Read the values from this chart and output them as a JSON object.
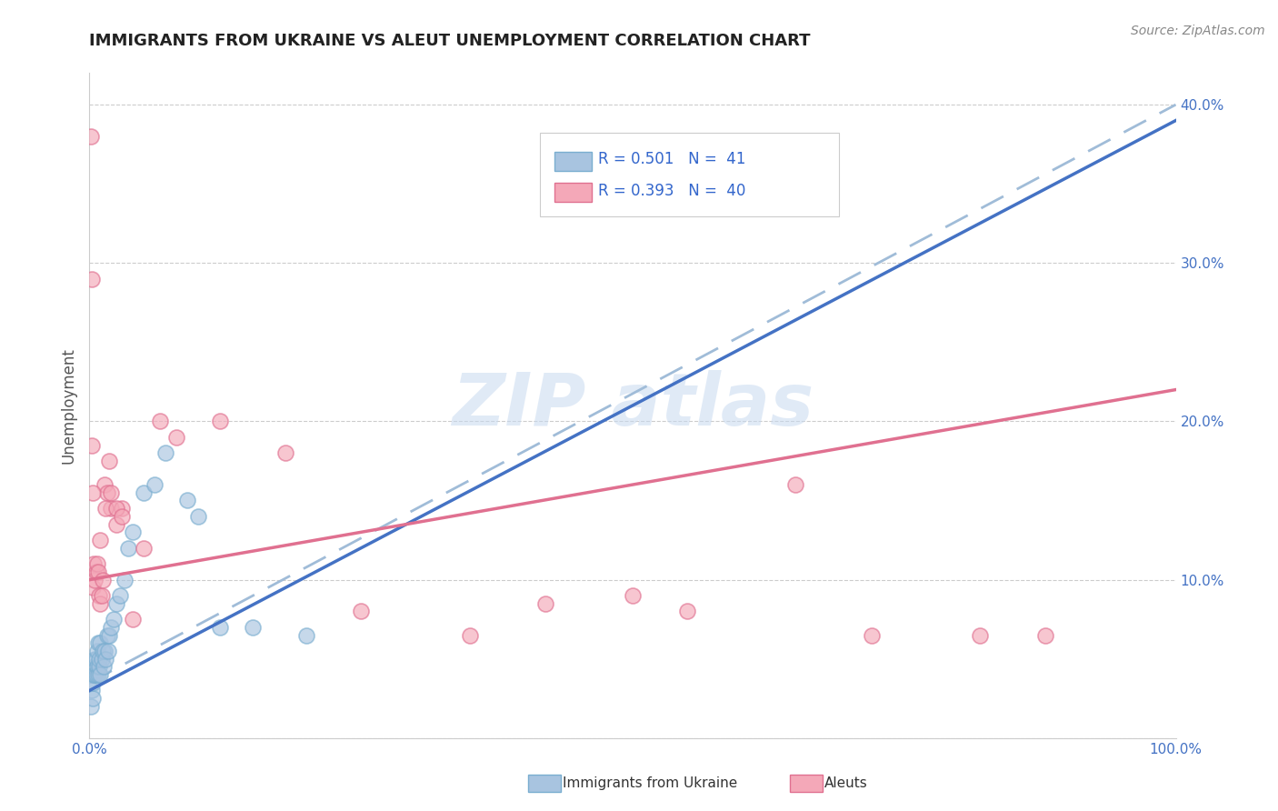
{
  "title": "IMMIGRANTS FROM UKRAINE VS ALEUT UNEMPLOYMENT CORRELATION CHART",
  "source_text": "Source: ZipAtlas.com",
  "ylabel": "Unemployment",
  "xlim": [
    0,
    1.0
  ],
  "ylim": [
    0,
    0.42
  ],
  "x_tick_positions": [
    0.0,
    1.0
  ],
  "x_tick_labels": [
    "0.0%",
    "100.0%"
  ],
  "y_tick_positions": [
    0.0,
    0.1,
    0.2,
    0.3,
    0.4
  ],
  "y_tick_labels": [
    "",
    "10.0%",
    "20.0%",
    "30.0%",
    "40.0%"
  ],
  "ukraine_color": "#a8c4e0",
  "ukraine_edge_color": "#7aaed0",
  "aleut_color": "#f4a8b8",
  "aleut_edge_color": "#e07090",
  "ukraine_line_color": "#4472c4",
  "aleut_line_color": "#e07090",
  "dashed_line_color": "#a0bcd8",
  "tick_color": "#4472c4",
  "grid_color": "#cccccc",
  "title_color": "#222222",
  "source_color": "#888888",
  "legend_labels": [
    "Immigrants from Ukraine",
    "Aleuts"
  ],
  "ukraine_x": [
    0.001,
    0.002,
    0.003,
    0.003,
    0.004,
    0.004,
    0.005,
    0.005,
    0.006,
    0.006,
    0.007,
    0.007,
    0.008,
    0.008,
    0.009,
    0.009,
    0.01,
    0.01,
    0.011,
    0.012,
    0.013,
    0.014,
    0.015,
    0.016,
    0.017,
    0.018,
    0.02,
    0.022,
    0.025,
    0.028,
    0.032,
    0.036,
    0.04,
    0.05,
    0.06,
    0.07,
    0.09,
    0.1,
    0.12,
    0.15,
    0.2
  ],
  "ukraine_y": [
    0.02,
    0.03,
    0.025,
    0.035,
    0.04,
    0.045,
    0.04,
    0.05,
    0.04,
    0.05,
    0.045,
    0.055,
    0.04,
    0.06,
    0.045,
    0.05,
    0.04,
    0.06,
    0.05,
    0.055,
    0.045,
    0.055,
    0.05,
    0.065,
    0.055,
    0.065,
    0.07,
    0.075,
    0.085,
    0.09,
    0.1,
    0.12,
    0.13,
    0.155,
    0.16,
    0.18,
    0.15,
    0.14,
    0.07,
    0.07,
    0.065
  ],
  "aleut_x": [
    0.001,
    0.002,
    0.003,
    0.004,
    0.005,
    0.006,
    0.007,
    0.008,
    0.009,
    0.01,
    0.011,
    0.012,
    0.014,
    0.016,
    0.018,
    0.02,
    0.025,
    0.03,
    0.04,
    0.05,
    0.065,
    0.08,
    0.12,
    0.18,
    0.25,
    0.35,
    0.42,
    0.5,
    0.55,
    0.65,
    0.72,
    0.82,
    0.88,
    0.002,
    0.003,
    0.01,
    0.015,
    0.02,
    0.025,
    0.03
  ],
  "aleut_y": [
    0.38,
    0.29,
    0.095,
    0.11,
    0.1,
    0.105,
    0.11,
    0.105,
    0.09,
    0.085,
    0.09,
    0.1,
    0.16,
    0.155,
    0.175,
    0.145,
    0.135,
    0.145,
    0.075,
    0.12,
    0.2,
    0.19,
    0.2,
    0.18,
    0.08,
    0.065,
    0.085,
    0.09,
    0.08,
    0.16,
    0.065,
    0.065,
    0.065,
    0.185,
    0.155,
    0.125,
    0.145,
    0.155,
    0.145,
    0.14
  ],
  "ukraine_trend": [
    0.03,
    0.39
  ],
  "aleut_trend_solid": [
    0.1,
    0.22
  ],
  "dashed_trend": [
    0.035,
    0.4
  ]
}
